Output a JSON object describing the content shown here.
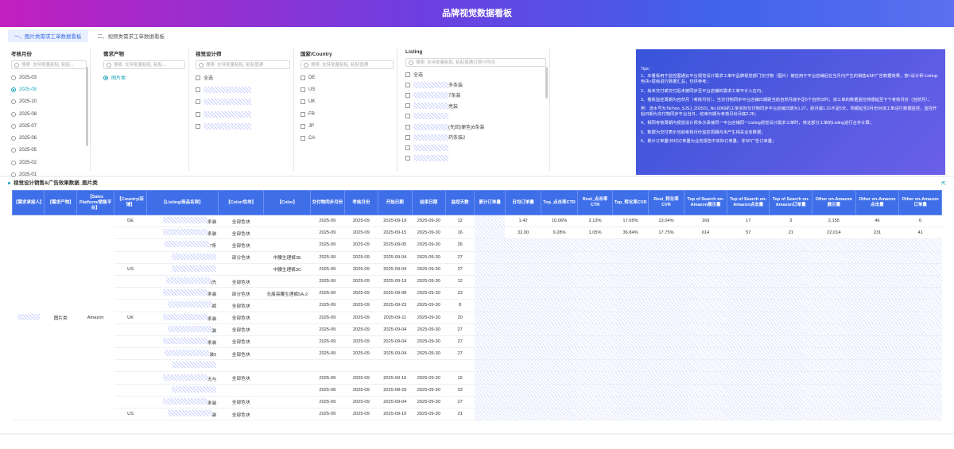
{
  "header": {
    "title": "品牌视觉数据看板"
  },
  "tabs": [
    {
      "label": "一、图片类需求工单数据看板",
      "active": true
    },
    {
      "label": "二、视频类需求工单数据看板",
      "active": false
    }
  ],
  "filters": {
    "month": {
      "title": "考核月份",
      "placeholder": "搜索: 支持批量粘贴, 粘贴...",
      "options": [
        "2025-03",
        "2025-09",
        "2025-10",
        "2025-08",
        "2025-07",
        "2025-06",
        "2025-05",
        "2025-02",
        "2025-01"
      ],
      "selected": "2025-09"
    },
    "product": {
      "title": "需求产物",
      "placeholder": "搜索: 支持批量粘贴, 粘贴...",
      "options": [
        "图片类"
      ],
      "selected": "图片类"
    },
    "designer": {
      "title": "视觉设计师",
      "placeholder": "搜索: 支持批量粘贴, 粘贴值通",
      "options": [
        "全选"
      ]
    },
    "country": {
      "title": "国家/Country",
      "placeholder": "搜索: 支持批量粘贴, 粘贴值通",
      "options": [
        "DE",
        "US",
        "UK",
        "FR",
        "JP",
        "CA"
      ]
    },
    "listing": {
      "title": "Listing",
      "placeholder": "搜索: 支持批量粘贴, 粘贴值通过换行符间",
      "options": [
        "全选",
        "多条装",
        "7条装",
        "亮装",
        "",
        "(先回)便色)6条装",
        "药条装2",
        "",
        ""
      ]
    }
  },
  "tips": {
    "heading": "Tips:",
    "items": [
      "1、本看板用于监控图通云平台视觉设计需求工单中品牌视觉部门交付物（图片）被应用于平台店铺后在当月内产生的销售&SP广告数据效果，按<设计师-Listing-色块>层级进行数据汇总，仅供参考；",
      "2、尚未交付或交付后未被同步至平台店铺的需求工单不计入在内；",
      "3、看板监控周期为自然月（考核月份），当交付物同步平台店铺日期距当前自然月底不足5个自然日时，该工单的数据监控将顺延至下个考核月份（自然月）；",
      "例：流水号为Tiichoo_SJSJ_202501_No.0069的工单实际交付物同步平台店铺日期为1.27，距月底1.31不足5天，则顺延至2月份对该工单进行数据监控，监控开始日期为交付物同步平台当日，结束日期为考核月份月底2.28；",
      "4、相同考核周期内视觉设计师多次承接同一平台店铺同一Listing视觉设计需求工单时，将这部分工单的Listing进行合并计算；",
      "5、数据为交付表示当前考核月份监控周期内未产生相关业务数据；",
      "6、累计订单量/日均订单量为业务报告中实际订单量，非SP广告订单量；"
    ]
  },
  "section": {
    "title": "视觉设计销售&广告效果数据_图片类",
    "expand_icon": "⇱"
  },
  "table": {
    "headers": [
      "【需求承接人】",
      "【需求产物】",
      "【Sales Platform/销售平台】",
      "【Country/店铺】",
      "【Listing/商品名称】",
      "【Color/色块】",
      "【Color】",
      "交付物同步月份",
      "考核月份",
      "开始日期",
      "结束日期",
      "监控天数",
      "累计订单量",
      "日均订单量",
      "Top_点击率CTR",
      "Rest_点击率CTR",
      "Top_转化率CVR",
      "Rest_转化率CVR",
      "Top of Search on-Amazon展示量",
      "Top of Search on-Amazon点击量",
      "Top of Search on-Amazon订单量",
      "Other on-Amazon展示量",
      "Other on-Amazon点击量",
      "Other on-Amazon订单量"
    ],
    "rows": [
      {
        "country": "DE",
        "listing": "条装",
        "color_block": "全部色块",
        "color": "",
        "sync": "2025-09",
        "month": "2025-09",
        "start": "2025-09-19",
        "end": "2025-09-30",
        "days": "12",
        "daily": "1.42",
        "top_ctr": "10.06%",
        "rest_ctr": "2.13%",
        "top_cvr": "17.65%",
        "rest_cvr": "13.04%",
        "ts_imp": "169",
        "ts_clk": "17",
        "ts_ord": "3",
        "ot_imp": "2,155",
        "ot_clk": "46",
        "ot_ord": "6"
      },
      {
        "country": "",
        "listing": "条装",
        "color_block": "全部色块",
        "color": "",
        "sync": "2025-09",
        "month": "2025-09",
        "start": "2025-09-15",
        "end": "2025-09-30",
        "days": "16",
        "daily": "32.00",
        "top_ctr": "9.28%",
        "rest_ctr": "1.05%",
        "top_cvr": "36.84%",
        "rest_cvr": "17.75%",
        "ts_imp": "614",
        "ts_clk": "57",
        "ts_ord": "21",
        "ot_imp": "22,014",
        "ot_clk": "231",
        "ot_ord": "41"
      },
      {
        "country": "",
        "listing": "7条",
        "color_block": "全部色块",
        "color": "",
        "sync": "2025-09",
        "month": "2025-09",
        "start": "2025-09-05",
        "end": "2025-09-30",
        "days": "26"
      },
      {
        "country": "",
        "listing": "",
        "color_block": "部分色块",
        "color": "中腰生理裤3E",
        "sync": "2025-09",
        "month": "2025-09",
        "start": "2025-09-04",
        "end": "2025-09-30",
        "days": "27"
      },
      {
        "country": "US",
        "listing": "",
        "color_block": "",
        "color": "中腰生理裤3C",
        "sync": "2025-09",
        "month": "2025-09",
        "start": "2025-09-04",
        "end": "2025-09-30",
        "days": "27"
      },
      {
        "country": "",
        "listing": "(先",
        "color_block": "全部色块",
        "color": "",
        "sync": "2025-09",
        "month": "2025-09",
        "start": "2025-09-19",
        "end": "2025-09-30",
        "days": "12"
      },
      {
        "country": "",
        "listing": "条装",
        "color_block": "部分色块",
        "color": "无痕亮腰生理裤5A-2",
        "sync": "2025-09",
        "month": "2025-09",
        "start": "2025-09-08",
        "end": "2025-09-30",
        "days": "23"
      },
      {
        "country": "",
        "listing": "裤",
        "color_block": "全部色块",
        "color": "",
        "sync": "2025-09",
        "month": "2025-09",
        "start": "2025-09-23",
        "end": "2025-09-30",
        "days": "8"
      },
      {
        "country": "UK",
        "listing": "条装",
        "color_block": "全部色块",
        "color": "",
        "sync": "2025-09",
        "month": "2025-09",
        "start": "2025-09-11",
        "end": "2025-09-30",
        "days": "20"
      },
      {
        "country": "",
        "listing": "装",
        "color_block": "全部色块",
        "color": "",
        "sync": "2025-09",
        "month": "2025-09",
        "start": "2025-09-04",
        "end": "2025-09-30",
        "days": "27"
      },
      {
        "country": "",
        "listing": "条装",
        "color_block": "全部色块",
        "color": "",
        "sync": "2025-09",
        "month": "2025-09",
        "start": "2025-09-04",
        "end": "2025-09-30",
        "days": "27"
      },
      {
        "country": "",
        "listing": "装5",
        "color_block": "全部色块",
        "color": "",
        "sync": "2025-09",
        "month": "2025-09",
        "start": "2025-09-04",
        "end": "2025-09-30",
        "days": "27"
      },
      {
        "country": "",
        "listing": "",
        "color_block": "",
        "color": "",
        "sync": "",
        "month": "",
        "start": "",
        "end": "",
        "days": ""
      },
      {
        "country": "",
        "listing": "无与",
        "color_block": "全部色块",
        "color": "",
        "sync": "2025-09",
        "month": "2025-09",
        "start": "2025-09-16",
        "end": "2025-09-30",
        "days": "15"
      },
      {
        "country": "",
        "listing": "",
        "color_block": "",
        "color": "",
        "sync": "2025-08",
        "month": "2025-09",
        "start": "2025-08-29",
        "end": "2025-09-30",
        "days": "33"
      },
      {
        "country": "",
        "listing": "条装",
        "color_block": "全部色块",
        "color": "",
        "sync": "2025-09",
        "month": "2025-09",
        "start": "2025-09-04",
        "end": "2025-09-30",
        "days": "27"
      },
      {
        "country": "US",
        "listing": "装",
        "color_block": "全部色块",
        "color": "",
        "sync": "2025-09",
        "month": "2025-09",
        "start": "2025-09-10",
        "end": "2025-09-30",
        "days": "21"
      }
    ],
    "group": {
      "person": "",
      "product": "图片类",
      "platform": "Amazon"
    }
  }
}
